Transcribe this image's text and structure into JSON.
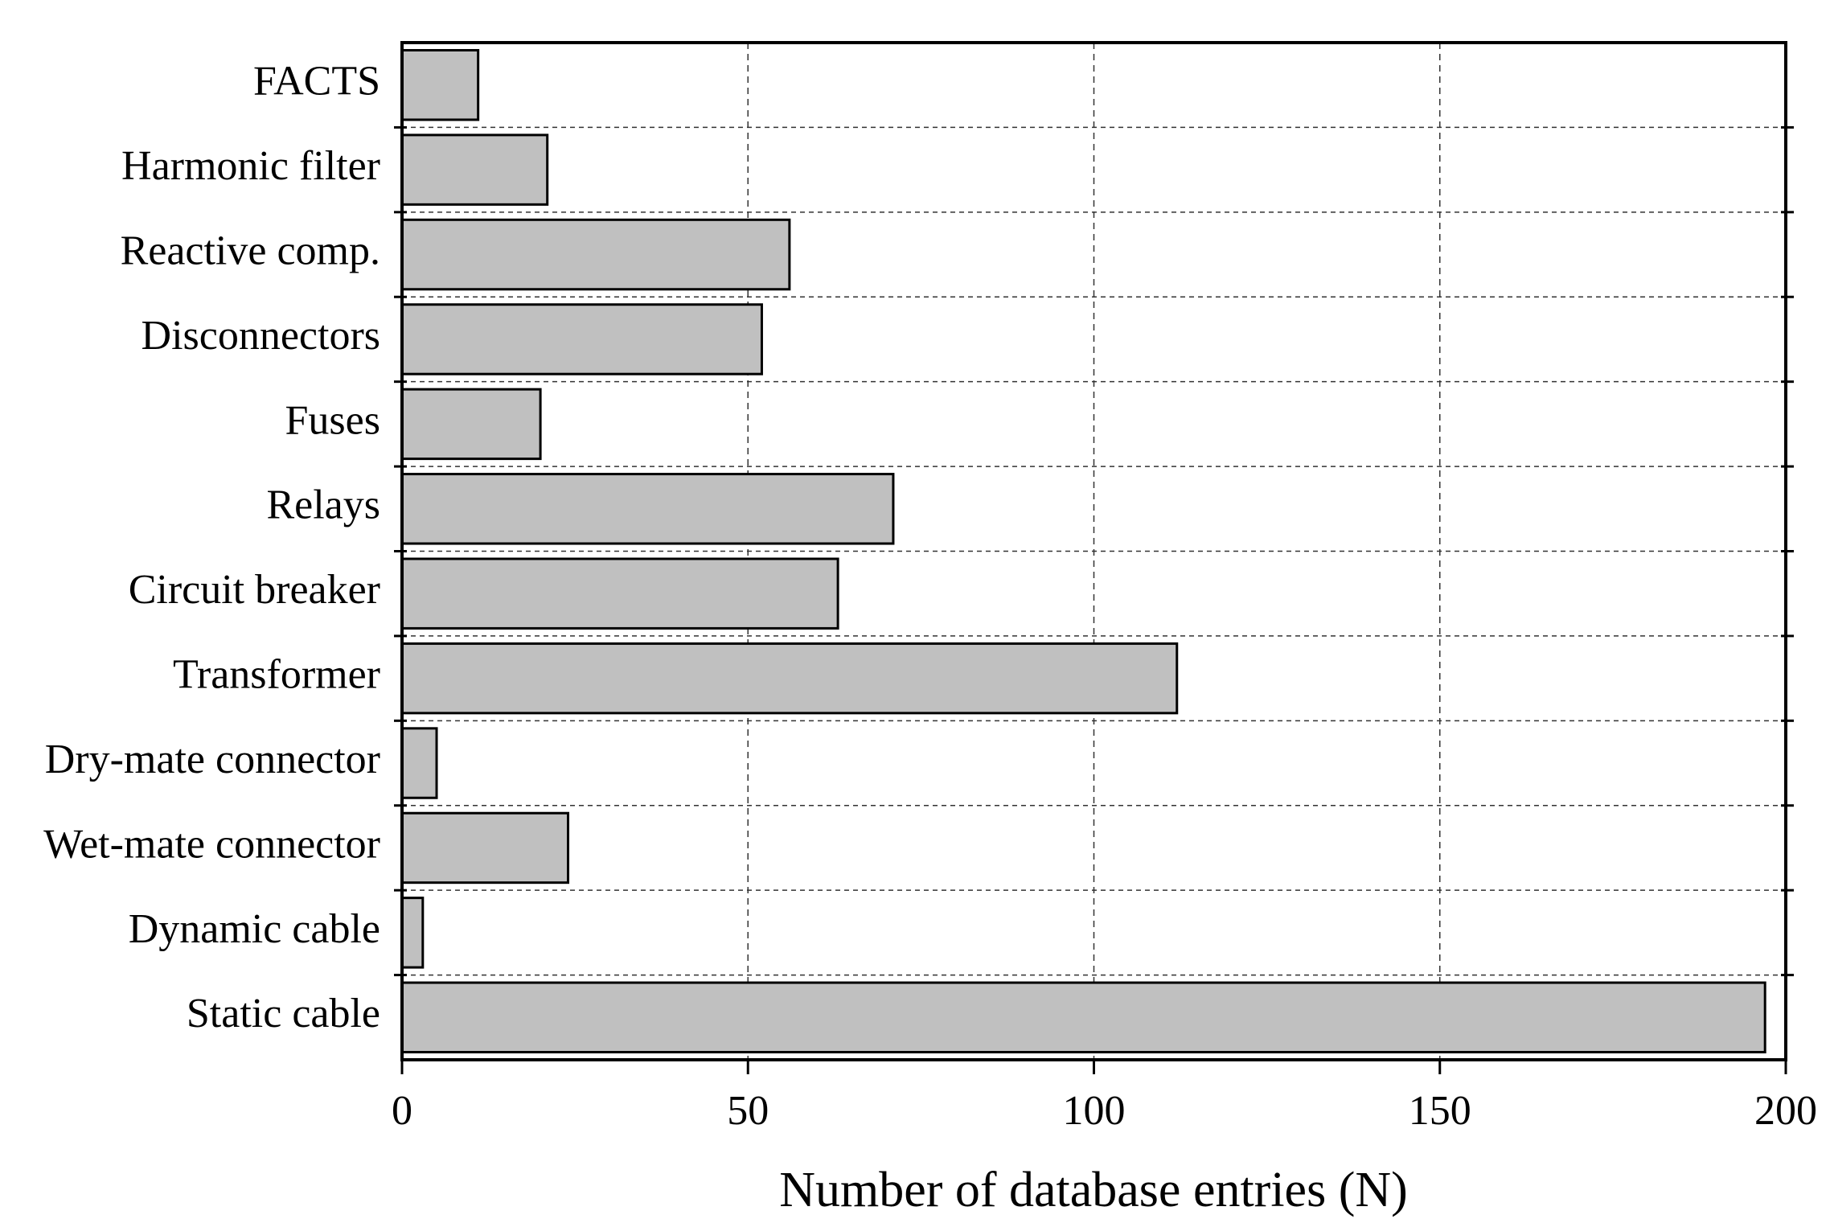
{
  "chart_data": {
    "type": "bar",
    "orientation": "horizontal",
    "x_label": "Number of database entries (N)",
    "categories": [
      "FACTS",
      "Harmonic filter",
      "Reactive comp.",
      "Disconnectors",
      "Fuses",
      "Relays",
      "Circuit breaker",
      "Transformer",
      "Dry-mate connector",
      "Wet-mate connector",
      "Dynamic cable",
      "Static cable"
    ],
    "values": [
      11,
      21,
      56,
      52,
      20,
      71,
      63,
      112,
      5,
      24,
      3,
      197
    ],
    "color": "#c0c0c0",
    "xlim": [
      0,
      200
    ],
    "xticks": [
      0,
      50,
      100,
      150,
      200
    ],
    "grid": true
  }
}
